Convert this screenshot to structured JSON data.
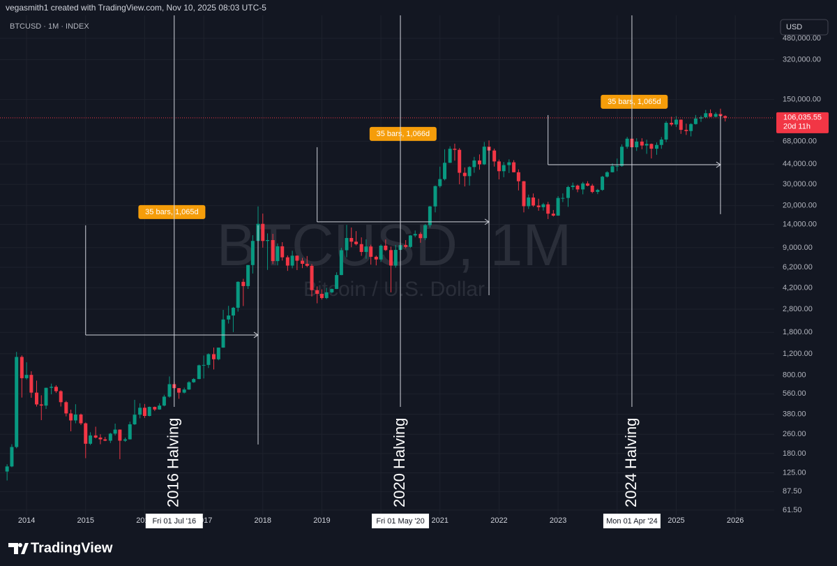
{
  "header": {
    "credit": "vegasmith1 created with TradingView.com, Nov 10, 2025 08:03 UTC-5",
    "symbol": "BTCUSD · 1M · INDEX",
    "currency": "USD"
  },
  "chart_data": {
    "type": "candlestick",
    "watermark": "BTCUSD, 1M",
    "watermark_subtitle": "Bitcoin / U.S. Dollar",
    "up_color": "#089981",
    "down_color": "#f23645",
    "log_scale": true,
    "grid": true,
    "xlim": [
      2013.55,
      2026.66
    ],
    "xticks": [
      2014,
      2015,
      2016,
      2017,
      2018,
      2019,
      2020,
      2021,
      2022,
      2023,
      2024,
      2025,
      2026
    ],
    "ylim": [
      56,
      743000
    ],
    "yticks": [
      {
        "value": 61.5,
        "label": "61.50"
      },
      {
        "value": 87.5,
        "label": "87.50"
      },
      {
        "value": 125,
        "label": "125.00"
      },
      {
        "value": 180,
        "label": "180.00"
      },
      {
        "value": 260,
        "label": "260.00"
      },
      {
        "value": 380,
        "label": "380.00"
      },
      {
        "value": 560,
        "label": "560.00"
      },
      {
        "value": 800,
        "label": "800.00"
      },
      {
        "value": 1200,
        "label": "1,200.00"
      },
      {
        "value": 1800,
        "label": "1,800.00"
      },
      {
        "value": 2800,
        "label": "2,800.00"
      },
      {
        "value": 4200,
        "label": "4,200.00"
      },
      {
        "value": 6200,
        "label": "6,200.00"
      },
      {
        "value": 9000,
        "label": "9,000.00"
      },
      {
        "value": 14000,
        "label": "14,000.00"
      },
      {
        "value": 20000,
        "label": "20,000.00"
      },
      {
        "value": 30000,
        "label": "30,000.00"
      },
      {
        "value": 44000,
        "label": "44,000.00"
      },
      {
        "value": 68000,
        "label": "68,000.00"
      },
      {
        "value": 150000,
        "label": "150,000.00"
      },
      {
        "value": 320000,
        "label": "320,000.00"
      },
      {
        "value": 480000,
        "label": "480,000.00"
      }
    ],
    "x": [
      2013.67,
      2013.75,
      2013.83,
      2013.92,
      2014,
      2014.08,
      2014.17,
      2014.25,
      2014.33,
      2014.42,
      2014.5,
      2014.58,
      2014.67,
      2014.75,
      2014.83,
      2014.92,
      2015,
      2015.08,
      2015.17,
      2015.25,
      2015.33,
      2015.42,
      2015.5,
      2015.58,
      2015.67,
      2015.75,
      2015.83,
      2015.92,
      2016,
      2016.08,
      2016.17,
      2016.25,
      2016.33,
      2016.42,
      2016.5,
      2016.58,
      2016.67,
      2016.75,
      2016.83,
      2016.92,
      2017,
      2017.08,
      2017.17,
      2017.25,
      2017.33,
      2017.42,
      2017.5,
      2017.58,
      2017.67,
      2017.75,
      2017.83,
      2017.92,
      2018,
      2018.08,
      2018.17,
      2018.25,
      2018.33,
      2018.42,
      2018.5,
      2018.58,
      2018.67,
      2018.75,
      2018.83,
      2018.92,
      2019,
      2019.08,
      2019.17,
      2019.25,
      2019.33,
      2019.42,
      2019.5,
      2019.58,
      2019.67,
      2019.75,
      2019.83,
      2019.92,
      2020,
      2020.08,
      2020.17,
      2020.25,
      2020.33,
      2020.42,
      2020.5,
      2020.58,
      2020.67,
      2020.75,
      2020.83,
      2020.92,
      2021,
      2021.08,
      2021.17,
      2021.25,
      2021.33,
      2021.42,
      2021.5,
      2021.58,
      2021.67,
      2021.75,
      2021.83,
      2021.92,
      2022,
      2022.08,
      2022.17,
      2022.25,
      2022.33,
      2022.42,
      2022.5,
      2022.58,
      2022.67,
      2022.75,
      2022.83,
      2022.92,
      2023,
      2023.08,
      2023.17,
      2023.25,
      2023.33,
      2023.42,
      2023.5,
      2023.58,
      2023.67,
      2023.75,
      2023.83,
      2023.92,
      2024,
      2024.08,
      2024.17,
      2024.25,
      2024.33,
      2024.42,
      2024.5,
      2024.58,
      2024.67,
      2024.75,
      2024.83,
      2024.92,
      2025,
      2025.08,
      2025.17,
      2025.25,
      2025.33,
      2025.42,
      2025.5,
      2025.58,
      2025.67,
      2025.75,
      2025.83
    ],
    "open": [
      128,
      141,
      204,
      1129,
      754,
      803,
      573,
      458,
      448,
      628,
      640,
      589,
      478,
      386,
      338,
      378,
      320,
      217,
      254,
      244,
      236,
      230,
      263,
      284,
      230,
      236,
      314,
      377,
      430,
      368,
      437,
      416,
      448,
      531,
      673,
      624,
      573,
      608,
      698,
      742,
      963,
      970,
      1190,
      1080,
      1348,
      2300,
      2480,
      2875,
      4703,
      4338,
      6468,
      10233,
      14156,
      10221,
      10397,
      6973,
      9240,
      7494,
      6404,
      7730,
      7025,
      6626,
      6371,
      4017,
      3742,
      3457,
      3854,
      4105,
      5350,
      8574,
      10817,
      10085,
      9630,
      8293,
      9199,
      7569,
      7193,
      9350,
      8599,
      6410,
      8629,
      9454,
      9137,
      11351,
      11680,
      10784,
      13804,
      19700,
      28990,
      33114,
      45137,
      58918,
      57750,
      37332,
      35041,
      41626,
      47166,
      43790,
      61318,
      57005,
      46306,
      38483,
      43193,
      45538,
      37714,
      31792,
      19784,
      23336,
      20049,
      19423,
      20495,
      17168,
      16548,
      23139,
      23147,
      28478,
      29268,
      27219,
      30477,
      29230,
      25940,
      26963,
      34668,
      37713,
      42265,
      42580,
      61198,
      71333,
      60636,
      67491,
      62678,
      64619,
      58969,
      63329,
      70215,
      96449,
      93429,
      102405,
      84373,
      82548,
      94207,
      104638,
      107135,
      115758,
      108236,
      114056,
      109556
    ],
    "high": [
      147,
      215,
      1242,
      1163,
      1020,
      860,
      720,
      545,
      630,
      680,
      660,
      600,
      490,
      415,
      460,
      385,
      325,
      270,
      300,
      260,
      247,
      267,
      318,
      285,
      244,
      330,
      500,
      468,
      462,
      440,
      440,
      468,
      550,
      780,
      705,
      625,
      630,
      712,
      755,
      975,
      1160,
      1210,
      1350,
      1350,
      2760,
      2980,
      2920,
      4750,
      4980,
      6470,
      11400,
      19700,
      17200,
      11800,
      11700,
      9760,
      9990,
      7770,
      8490,
      7770,
      7410,
      7680,
      6590,
      4310,
      4080,
      4200,
      4140,
      5640,
      9000,
      13880,
      13200,
      12330,
      10950,
      10540,
      9520,
      7750,
      9580,
      10500,
      9190,
      9470,
      10080,
      10390,
      11440,
      12470,
      12080,
      14100,
      19900,
      29300,
      41950,
      58350,
      61780,
      64900,
      59600,
      41330,
      42320,
      50500,
      52920,
      67000,
      69000,
      59100,
      47990,
      45800,
      48200,
      47440,
      39850,
      31960,
      24670,
      25200,
      22800,
      21080,
      21480,
      18400,
      23950,
      25250,
      29190,
      31000,
      29820,
      31400,
      31800,
      30240,
      27480,
      35200,
      38450,
      44700,
      48970,
      64000,
      73800,
      72800,
      71950,
      71950,
      70000,
      65100,
      66500,
      73600,
      99600,
      108300,
      109500,
      102750,
      95000,
      95700,
      111900,
      110500,
      123200,
      124500,
      117900,
      126200,
      111200
    ],
    "low": [
      108,
      139,
      199,
      522,
      735,
      520,
      440,
      340,
      420,
      555,
      570,
      440,
      365,
      275,
      320,
      310,
      165,
      212,
      240,
      215,
      228,
      220,
      254,
      162,
      225,
      235,
      310,
      352,
      354,
      365,
      404,
      414,
      442,
      521,
      605,
      510,
      565,
      605,
      690,
      740,
      750,
      915,
      890,
      1060,
      1345,
      2130,
      1810,
      2670,
      2970,
      4110,
      5510,
      10000,
      9000,
      5900,
      6600,
      6430,
      7040,
      5790,
      6080,
      5880,
      6100,
      6210,
      3560,
      3130,
      3360,
      3390,
      3780,
      4100,
      5340,
      7500,
      9070,
      9400,
      7710,
      7300,
      6520,
      6430,
      6860,
      8450,
      3850,
      6150,
      8110,
      8890,
      8970,
      10990,
      9880,
      10380,
      13200,
      17600,
      28130,
      32300,
      44960,
      47000,
      30000,
      28800,
      29300,
      37330,
      39600,
      43300,
      53250,
      42000,
      32930,
      34320,
      37200,
      37700,
      26700,
      17600,
      18780,
      19550,
      18150,
      18200,
      15500,
      16270,
      16500,
      21400,
      19550,
      26950,
      25810,
      24800,
      28860,
      25300,
      24900,
      26530,
      34100,
      37600,
      38500,
      41850,
      59000,
      59600,
      56550,
      58400,
      53500,
      49000,
      52550,
      58900,
      66800,
      90500,
      89200,
      78200,
      76600,
      74500,
      93400,
      98200,
      105100,
      107300,
      107250,
      103500,
      99000
    ],
    "close": [
      141,
      204,
      1129,
      754,
      803,
      573,
      458,
      448,
      628,
      640,
      589,
      478,
      386,
      338,
      378,
      320,
      217,
      254,
      244,
      236,
      230,
      263,
      284,
      230,
      236,
      314,
      377,
      430,
      368,
      437,
      416,
      448,
      531,
      673,
      624,
      573,
      608,
      698,
      742,
      963,
      970,
      1190,
      1080,
      1348,
      2300,
      2480,
      2875,
      4703,
      4338,
      6468,
      10233,
      14156,
      10221,
      10397,
      6973,
      9240,
      7494,
      6404,
      7730,
      7025,
      6626,
      6371,
      4017,
      3742,
      3457,
      3854,
      4105,
      5350,
      8574,
      10817,
      10085,
      9630,
      8293,
      9199,
      7569,
      7193,
      9350,
      8599,
      6410,
      8629,
      9454,
      9137,
      11351,
      11680,
      10784,
      13804,
      19700,
      28990,
      33114,
      45137,
      58918,
      57750,
      37332,
      35041,
      41626,
      47166,
      43790,
      61318,
      57005,
      46306,
      38483,
      43193,
      45538,
      37714,
      31792,
      19784,
      23336,
      20049,
      19423,
      20495,
      17168,
      16548,
      23139,
      23147,
      28478,
      29268,
      27219,
      30477,
      29230,
      25940,
      26963,
      34668,
      37713,
      42265,
      42580,
      61198,
      71333,
      60636,
      67491,
      62678,
      64619,
      58969,
      63329,
      70215,
      96449,
      93429,
      102405,
      84373,
      82548,
      94207,
      104638,
      107135,
      115758,
      108236,
      114056,
      109556,
      106035.55
    ],
    "last_price": {
      "value": 106035.55,
      "label": "106,035.55",
      "countdown": "20d 11h"
    },
    "halvings": [
      {
        "x": 2016.5,
        "label": "2016 Halving",
        "date_label": "Fri 01 Jul '16"
      },
      {
        "x": 2020.33,
        "label": "2020 Halving",
        "date_label": "Fri 01 May '20"
      },
      {
        "x": 2024.25,
        "label": "2024 Halving",
        "date_label": "Mon 01 Apr '24"
      }
    ],
    "measures": [
      {
        "label": "35 bars, 1,065d",
        "x_start": 2015,
        "x_end": 2017.92,
        "price": 1714,
        "high": 13750,
        "low": 214
      },
      {
        "label": "35 bars, 1,066d",
        "x_start": 2018.92,
        "x_end": 2021.83,
        "price": 14700,
        "high": 60700,
        "low": 3650
      },
      {
        "label": "35 bars, 1,065d",
        "x_start": 2022.83,
        "x_end": 2025.75,
        "price": 43500,
        "high": 111700,
        "low": 17000
      }
    ]
  },
  "footer": {
    "brand": "TradingView"
  }
}
